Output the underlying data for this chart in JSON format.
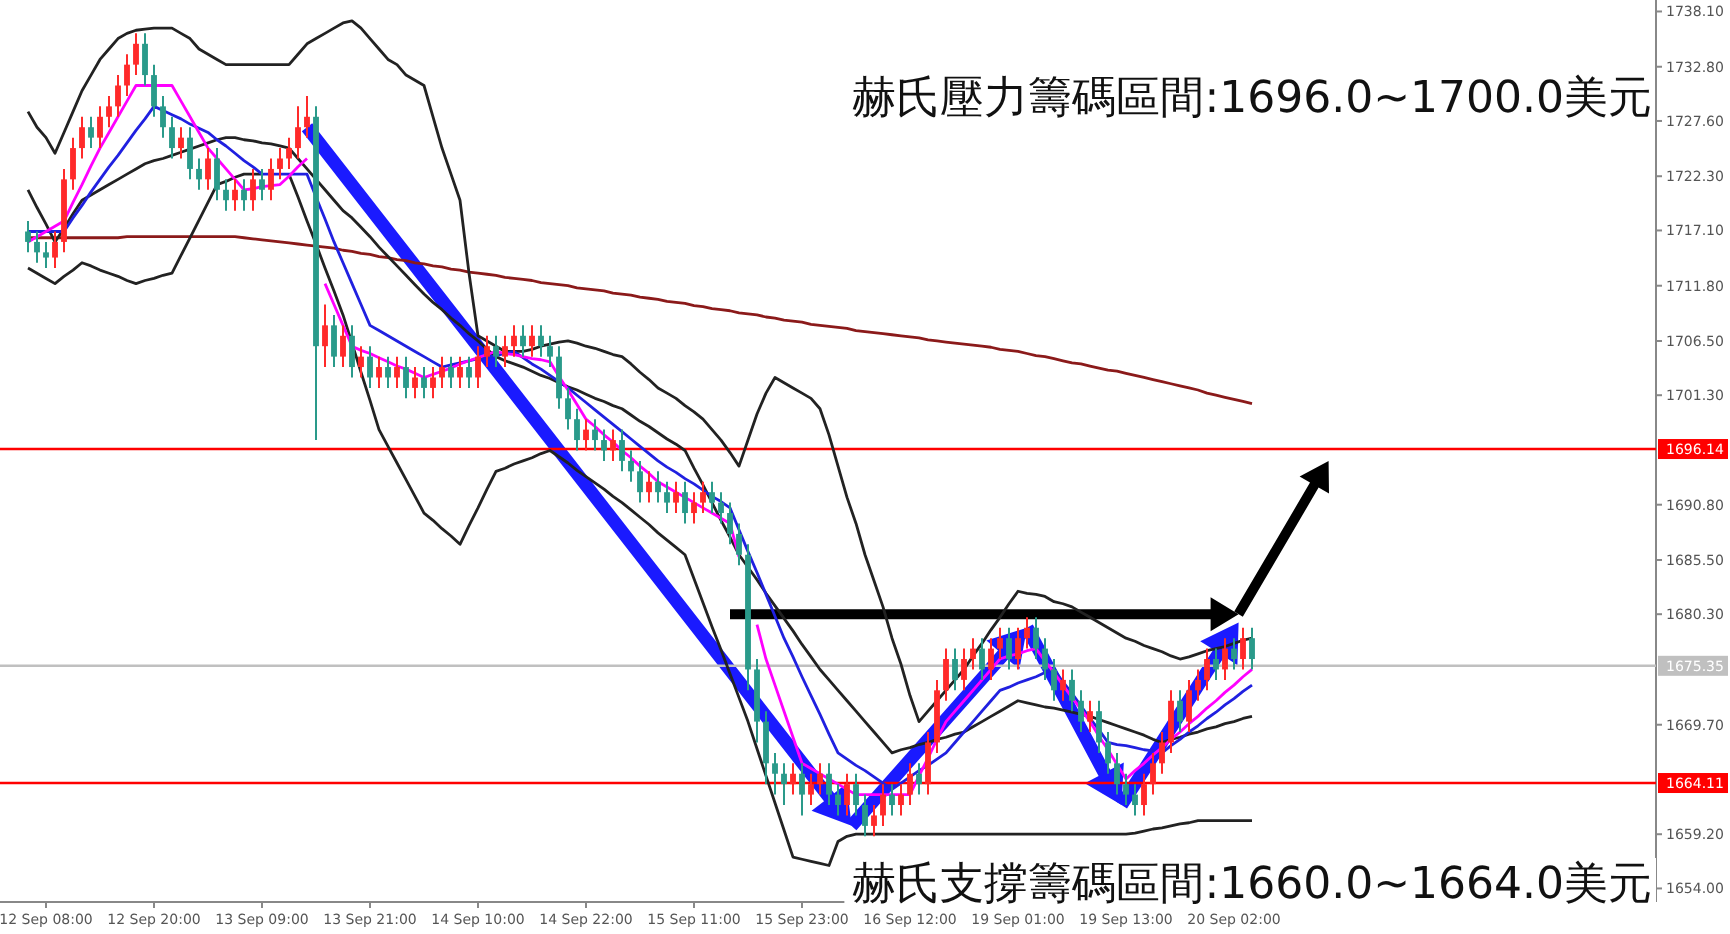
{
  "chart_data": {
    "type": "candlestick",
    "annotations": [
      "赫氏壓力籌碼區間:1696.0~1700.0美元",
      "赫氏支撐籌碼區間:1660.0~1664.0美元"
    ],
    "categories": [
      null,
      null,
      "12 Sep 08:00",
      null,
      null,
      null,
      null,
      null,
      null,
      null,
      null,
      null,
      null,
      null,
      "12 Sep 20:00",
      null,
      null,
      null,
      null,
      null,
      null,
      null,
      null,
      null,
      null,
      null,
      "13 Sep 09:00",
      null,
      null,
      null,
      null,
      null,
      null,
      null,
      null,
      null,
      null,
      null,
      "13 Sep 21:00",
      null,
      null,
      null,
      null,
      null,
      null,
      null,
      null,
      null,
      null,
      null,
      "14 Sep 10:00",
      null,
      null,
      null,
      null,
      null,
      null,
      null,
      null,
      null,
      null,
      null,
      "14 Sep 22:00",
      null,
      null,
      null,
      null,
      null,
      null,
      null,
      null,
      null,
      null,
      null,
      "15 Sep 11:00",
      null,
      null,
      null,
      null,
      null,
      null,
      null,
      null,
      null,
      null,
      null,
      "15 Sep 23:00",
      null,
      null,
      null,
      null,
      null,
      null,
      null,
      null,
      null,
      null,
      null,
      "16 Sep 12:00",
      null,
      null,
      null,
      null,
      null,
      null,
      null,
      null,
      null,
      null,
      null,
      "19 Sep 01:00",
      null,
      null,
      null,
      null,
      null,
      null,
      null,
      null,
      null,
      null,
      null,
      "19 Sep 13:00",
      null,
      null,
      null,
      null,
      null,
      null,
      null,
      null,
      null,
      null,
      null,
      "20 Sep 02:00",
      null,
      null
    ],
    "ylim": [
      1652.7,
      1739.2
    ],
    "yticks": [
      {
        "value": 1738.1,
        "label": "1738.10"
      },
      {
        "value": 1732.8,
        "label": "1732.80"
      },
      {
        "value": 1727.6,
        "label": "1727.60"
      },
      {
        "value": 1722.3,
        "label": "1722.30"
      },
      {
        "value": 1717.1,
        "label": "1717.10"
      },
      {
        "value": 1711.8,
        "label": "1711.80"
      },
      {
        "value": 1706.5,
        "label": "1706.50"
      },
      {
        "value": 1701.3,
        "label": "1701.30"
      },
      {
        "value": 1690.8,
        "label": "1690.80"
      },
      {
        "value": 1685.5,
        "label": "1685.50"
      },
      {
        "value": 1680.3,
        "label": "1680.30"
      },
      {
        "value": 1669.7,
        "label": "1669.70"
      },
      {
        "value": 1659.2,
        "label": "1659.20"
      },
      {
        "value": 1654,
        "label": "1654.00"
      }
    ],
    "ref_lines": [
      {
        "axis": "y",
        "value": 1696.14,
        "label": "1696.14",
        "color": "#ff0000"
      },
      {
        "axis": "y",
        "value": 1675.35,
        "label": "1675.35",
        "color": "#c0c0c0"
      },
      {
        "axis": "y",
        "value": 1664.11,
        "label": "1664.11",
        "color": "#ff0000"
      }
    ],
    "colors": [
      "#2a9a8a",
      "#2a9a8a",
      "#2a9a8a",
      "#ff2a2a",
      "#ff2a2a",
      "#ff2a2a",
      "#ff2a2a",
      "#2a9a8a",
      "#ff2a2a",
      "#ff2a2a",
      "#ff2a2a",
      "#ff2a2a",
      "#ff2a2a",
      "#2a9a8a",
      "#2a9a8a",
      "#2a9a8a",
      "#2a9a8a",
      "#ff2a2a",
      "#2a9a8a",
      "#2a9a8a",
      "#ff2a2a",
      "#2a9a8a",
      "#2a9a8a",
      "#ff2a2a",
      "#2a9a8a",
      "#ff2a2a",
      "#2a9a8a",
      "#ff2a2a",
      "#ff2a2a",
      "#ff2a2a",
      "#ff2a2a",
      "#ff2a2a",
      "#2a9a8a",
      "#ff2a2a",
      "#2a9a8a",
      "#ff2a2a",
      "#2a9a8a",
      "#ff2a2a",
      "#2a9a8a",
      "#ff2a2a",
      "#2a9a8a",
      "#ff2a2a",
      "#2a9a8a",
      "#ff2a2a",
      "#2a9a8a",
      "#ff2a2a",
      "#ff2a2a",
      "#2a9a8a",
      "#ff2a2a",
      "#2a9a8a",
      "#ff2a2a",
      "#ff2a2a",
      "#2a9a8a",
      "#ff2a2a",
      "#ff2a2a",
      "#2a9a8a",
      "#ff2a2a",
      "#2a9a8a",
      "#2a9a8a",
      "#2a9a8a",
      "#2a9a8a",
      "#2a9a8a",
      "#ff2a2a",
      "#2a9a8a",
      "#2a9a8a",
      "#ff2a2a",
      "#2a9a8a",
      "#2a9a8a",
      "#2a9a8a",
      "#ff2a2a",
      "#2a9a8a",
      "#2a9a8a",
      "#ff2a2a",
      "#2a9a8a",
      "#ff2a2a",
      "#ff2a2a",
      "#2a9a8a",
      "#2a9a8a",
      "#2a9a8a",
      "#2a9a8a",
      "#2a9a8a",
      "#2a9a8a",
      "#2a9a8a",
      "#2a9a8a",
      "#2a9a8a",
      "#ff2a2a",
      "#2a9a8a",
      "#ff2a2a",
      "#ff2a2a",
      "#2a9a8a",
      "#2a9a8a",
      "#ff2a2a",
      "#2a9a8a",
      "#2a9a8a",
      "#ff2a2a",
      "#ff2a2a",
      "#2a9a8a",
      "#ff2a2a",
      "#ff2a2a",
      "#2a9a8a",
      "#ff2a2a",
      "#ff2a2a",
      "#ff2a2a",
      "#2a9a8a",
      "#ff2a2a",
      "#ff2a2a",
      "#2a9a8a",
      "#ff2a2a",
      "#ff2a2a",
      "#2a9a8a",
      "#ff2a2a",
      "#ff2a2a",
      "#2a9a8a",
      "#2a9a8a",
      "#2a9a8a",
      "#ff2a2a",
      "#2a9a8a",
      "#2a9a8a",
      "#ff2a2a",
      "#2a9a8a",
      "#2a9a8a",
      "#2a9a8a",
      "#2a9a8a",
      "#2a9a8a",
      "#ff2a2a",
      "#ff2a2a",
      "#ff2a2a",
      "#ff2a2a",
      "#2a9a8a",
      "#ff2a2a",
      "#ff2a2a",
      "#ff2a2a",
      "#2a9a8a",
      "#ff2a2a",
      "#2a9a8a",
      "#ff2a2a",
      "#2a9a8a"
    ],
    "ohlc": [
      [
        1717,
        1718,
        1715,
        1716
      ],
      [
        1716,
        1717,
        1714,
        1715
      ],
      [
        1715,
        1716,
        1713.5,
        1714.5
      ],
      [
        1714.5,
        1717,
        1713.5,
        1716
      ],
      [
        1716,
        1723,
        1715,
        1722
      ],
      [
        1722,
        1726,
        1721,
        1725
      ],
      [
        1725,
        1728,
        1724,
        1727
      ],
      [
        1727,
        1728,
        1725,
        1726
      ],
      [
        1726,
        1729,
        1725,
        1728
      ],
      [
        1728,
        1730,
        1727,
        1729
      ],
      [
        1729,
        1732,
        1728,
        1731
      ],
      [
        1731,
        1734,
        1730,
        1733
      ],
      [
        1733,
        1736,
        1732,
        1735
      ],
      [
        1735,
        1736,
        1731,
        1732
      ],
      [
        1732,
        1733,
        1728,
        1729
      ],
      [
        1729,
        1730,
        1726,
        1727
      ],
      [
        1727,
        1728,
        1724,
        1725
      ],
      [
        1725,
        1727,
        1724,
        1726
      ],
      [
        1726,
        1727,
        1722,
        1723
      ],
      [
        1723,
        1724,
        1721,
        1722
      ],
      [
        1722,
        1725,
        1721,
        1724
      ],
      [
        1724,
        1725,
        1720,
        1721
      ],
      [
        1721,
        1722,
        1719,
        1720
      ],
      [
        1720,
        1722,
        1719,
        1721
      ],
      [
        1721,
        1722,
        1719,
        1720
      ],
      [
        1720,
        1723,
        1719,
        1722
      ],
      [
        1722,
        1723,
        1720,
        1721
      ],
      [
        1721,
        1724,
        1720,
        1723
      ],
      [
        1723,
        1725,
        1722,
        1724
      ],
      [
        1724,
        1726,
        1723,
        1725
      ],
      [
        1725,
        1729,
        1724,
        1727
      ],
      [
        1727,
        1730,
        1726,
        1728
      ],
      [
        1728,
        1729,
        1697,
        1706
      ],
      [
        1706,
        1710,
        1704,
        1708
      ],
      [
        1708,
        1709,
        1704,
        1705
      ],
      [
        1705,
        1708,
        1704,
        1707
      ],
      [
        1707,
        1708,
        1703,
        1704
      ],
      [
        1704,
        1706,
        1703,
        1705
      ],
      [
        1705,
        1706,
        1702,
        1703
      ],
      [
        1703,
        1705,
        1702,
        1704
      ],
      [
        1704,
        1705,
        1702,
        1703
      ],
      [
        1703,
        1705,
        1702,
        1704
      ],
      [
        1704,
        1705,
        1701,
        1702
      ],
      [
        1702,
        1704,
        1701,
        1703
      ],
      [
        1703,
        1704,
        1701,
        1702
      ],
      [
        1702,
        1704,
        1701,
        1703
      ],
      [
        1703,
        1705,
        1702,
        1704
      ],
      [
        1704,
        1705,
        1702,
        1703
      ],
      [
        1703,
        1705,
        1702,
        1704
      ],
      [
        1704,
        1705,
        1702,
        1703
      ],
      [
        1703,
        1706,
        1702,
        1705
      ],
      [
        1705,
        1707,
        1704,
        1706
      ],
      [
        1706,
        1707,
        1704,
        1705
      ],
      [
        1705,
        1707,
        1704,
        1706
      ],
      [
        1706,
        1708,
        1705,
        1707
      ],
      [
        1707,
        1708,
        1705,
        1706
      ],
      [
        1706,
        1708,
        1705,
        1707
      ],
      [
        1707,
        1708,
        1705,
        1706
      ],
      [
        1706,
        1707,
        1704,
        1705
      ],
      [
        1705,
        1706,
        1700,
        1701
      ],
      [
        1701,
        1702,
        1698,
        1699
      ],
      [
        1699,
        1700,
        1696,
        1697
      ],
      [
        1697,
        1699,
        1696,
        1698
      ],
      [
        1698,
        1699,
        1696,
        1697
      ],
      [
        1697,
        1698,
        1695,
        1696
      ],
      [
        1696,
        1698,
        1695,
        1697
      ],
      [
        1697,
        1698,
        1694,
        1695
      ],
      [
        1695,
        1696,
        1693,
        1694
      ],
      [
        1694,
        1695,
        1691,
        1692
      ],
      [
        1692,
        1694,
        1691,
        1693
      ],
      [
        1693,
        1694,
        1691,
        1692
      ],
      [
        1692,
        1693,
        1690,
        1691
      ],
      [
        1691,
        1693,
        1690,
        1692
      ],
      [
        1692,
        1693,
        1689,
        1690
      ],
      [
        1690,
        1692,
        1689,
        1691
      ],
      [
        1691,
        1693,
        1690,
        1692
      ],
      [
        1692,
        1693,
        1690,
        1691
      ],
      [
        1691,
        1692,
        1689,
        1690
      ],
      [
        1690,
        1691,
        1687,
        1688
      ],
      [
        1688,
        1689,
        1685,
        1686
      ],
      [
        1686,
        1687,
        1673,
        1675
      ],
      [
        1675,
        1676,
        1668,
        1670
      ],
      [
        1670,
        1671,
        1664,
        1666
      ],
      [
        1666,
        1667,
        1663,
        1665
      ],
      [
        1665,
        1666,
        1662,
        1664
      ],
      [
        1664,
        1666,
        1663,
        1665
      ],
      [
        1665,
        1666,
        1661,
        1663
      ],
      [
        1663,
        1665,
        1662,
        1664
      ],
      [
        1664,
        1666,
        1663,
        1665
      ],
      [
        1665,
        1666,
        1662,
        1663
      ],
      [
        1663,
        1664,
        1661,
        1662
      ],
      [
        1662,
        1665,
        1661,
        1664
      ],
      [
        1664,
        1665,
        1661,
        1662
      ],
      [
        1662,
        1663,
        1659,
        1660
      ],
      [
        1660,
        1662,
        1659,
        1661
      ],
      [
        1661,
        1664,
        1660,
        1663
      ],
      [
        1663,
        1664,
        1661,
        1662
      ],
      [
        1662,
        1664,
        1661,
        1663
      ],
      [
        1663,
        1666,
        1662,
        1665
      ],
      [
        1665,
        1666,
        1663,
        1664
      ],
      [
        1664,
        1669,
        1663,
        1668
      ],
      [
        1668,
        1674,
        1667,
        1673
      ],
      [
        1673,
        1677,
        1672,
        1676
      ],
      [
        1676,
        1677,
        1673,
        1674
      ],
      [
        1674,
        1677,
        1673,
        1676
      ],
      [
        1676,
        1678,
        1675,
        1677
      ],
      [
        1677,
        1678,
        1674,
        1675
      ],
      [
        1675,
        1678,
        1674,
        1677
      ],
      [
        1677,
        1679,
        1676,
        1678
      ],
      [
        1678,
        1679,
        1675,
        1676
      ],
      [
        1676,
        1679,
        1675,
        1678
      ],
      [
        1678,
        1680,
        1677,
        1679
      ],
      [
        1679,
        1680,
        1676,
        1677
      ],
      [
        1677,
        1678,
        1674,
        1675
      ],
      [
        1675,
        1676,
        1672,
        1673
      ],
      [
        1673,
        1675,
        1672,
        1674
      ],
      [
        1674,
        1675,
        1671,
        1672
      ],
      [
        1672,
        1673,
        1669,
        1670
      ],
      [
        1670,
        1672,
        1669,
        1671
      ],
      [
        1671,
        1672,
        1667,
        1668
      ],
      [
        1668,
        1669,
        1665,
        1666
      ],
      [
        1666,
        1667,
        1663,
        1664
      ],
      [
        1664,
        1665,
        1662,
        1663
      ],
      [
        1663,
        1664,
        1661,
        1662
      ],
      [
        1662,
        1665,
        1661,
        1664
      ],
      [
        1664,
        1667,
        1663,
        1666
      ],
      [
        1666,
        1669,
        1665,
        1668
      ],
      [
        1668,
        1673,
        1667,
        1672
      ],
      [
        1672,
        1673,
        1669,
        1670
      ],
      [
        1670,
        1674,
        1669,
        1673
      ],
      [
        1673,
        1675,
        1672,
        1674
      ],
      [
        1674,
        1677,
        1673,
        1676
      ],
      [
        1676,
        1677,
        1674,
        1675
      ],
      [
        1675,
        1678,
        1674,
        1677
      ],
      [
        1677,
        1678,
        1675,
        1676
      ],
      [
        1676,
        1679,
        1675,
        1678
      ],
      [
        1678,
        1679,
        1675,
        1676
      ]
    ],
    "series": [
      {
        "type": "line",
        "color": "#8b1a1a",
        "values": [
          1716.4,
          1716.4,
          1716.4,
          1716.4,
          1716.4,
          1716.4,
          1716.4,
          1716.4,
          1716.4,
          1716.4,
          1716.4,
          1716.5,
          1716.5,
          1716.5,
          1716.5,
          1716.5,
          1716.5,
          1716.5,
          1716.5,
          1716.5,
          1716.5,
          1716.5,
          1716.5,
          1716.5,
          1716.4,
          1716.3,
          1716.2,
          1716.1,
          1716,
          1715.9,
          1715.8,
          1715.7,
          1715.6,
          1715.5,
          1715.4,
          1715.2,
          1715.1,
          1714.9,
          1714.8,
          1714.6,
          1714.5,
          1714.3,
          1714.2,
          1714,
          1713.9,
          1713.7,
          1713.6,
          1713.4,
          1713.3,
          1713.1,
          1713,
          1712.9,
          1712.8,
          1712.6,
          1712.5,
          1712.4,
          1712.3,
          1712.1,
          1712,
          1711.9,
          1711.8,
          1711.6,
          1711.5,
          1711.4,
          1711.3,
          1711.1,
          1711,
          1710.9,
          1710.7,
          1710.6,
          1710.5,
          1710.3,
          1710.2,
          1710.1,
          1709.9,
          1709.8,
          1709.6,
          1709.5,
          1709.4,
          1709.2,
          1709.1,
          1709,
          1708.8,
          1708.7,
          1708.5,
          1708.4,
          1708.3,
          1708.1,
          1708,
          1707.9,
          1707.8,
          1707.7,
          1707.5,
          1707.4,
          1707.3,
          1707.2,
          1707.1,
          1707,
          1706.9,
          1706.8,
          1706.6,
          1706.5,
          1706.4,
          1706.3,
          1706.2,
          1706.1,
          1706,
          1705.9,
          1705.7,
          1705.6,
          1705.5,
          1705.3,
          1705.1,
          1705,
          1704.8,
          1704.6,
          1704.4,
          1704.3,
          1704.1,
          1703.9,
          1703.7,
          1703.6,
          1703.4,
          1703.2,
          1703,
          1702.8,
          1702.6,
          1702.4,
          1702.2,
          1702,
          1701.8,
          1701.5,
          1701.3,
          1701.1,
          1700.9,
          1700.7,
          1700.5
        ]
      },
      {
        "type": "line",
        "color": "#222222",
        "values": [
          1728.5,
          1727,
          1726,
          1724.5,
          1726.5,
          1728.5,
          1730.5,
          1732,
          1733.5,
          1734.5,
          1735.5,
          1736,
          1736.3,
          1736.4,
          1736.5,
          1736.5,
          1736.5,
          1736,
          1735.5,
          1734.5,
          1734,
          1733.5,
          1733,
          1733,
          1733,
          1733,
          1733,
          1733,
          1733,
          1733,
          1734,
          1735,
          1735.5,
          1736,
          1736.5,
          1737,
          1737.2,
          1736.5,
          1735.5,
          1734.5,
          1733.5,
          1733,
          1732,
          1731.5,
          1731,
          1728,
          1725,
          1722.5,
          1720,
          1713,
          1707,
          1706.5,
          1706,
          1705.5,
          1705.5,
          1705.5,
          1705.7,
          1706,
          1706.2,
          1706.4,
          1706.5,
          1706.3,
          1706,
          1705.8,
          1705.5,
          1705.2,
          1705,
          1704.3,
          1703.5,
          1702.8,
          1702,
          1701.5,
          1701,
          1700.3,
          1699.7,
          1699,
          1698,
          1697,
          1695.8,
          1694.5,
          1697,
          1699.5,
          1701.5,
          1703,
          1702.5,
          1702,
          1701.5,
          1701,
          1700,
          1697.5,
          1694.5,
          1691.5,
          1689,
          1686,
          1683.5,
          1681,
          1678,
          1675.5,
          1672.5,
          1670,
          1671,
          1672,
          1673,
          1674,
          1675,
          1676.3,
          1677.5,
          1678.8,
          1680,
          1681.3,
          1682.5,
          1682.3,
          1682.2,
          1682,
          1681.5,
          1681.3,
          1681,
          1680.5,
          1680,
          1679.5,
          1679,
          1678.5,
          1678,
          1677.7,
          1677.3,
          1677,
          1676.7,
          1676.3,
          1676,
          1676.2,
          1676.5,
          1676.8,
          1677,
          1677.2,
          1677.5,
          1677.8,
          1678
        ]
      },
      {
        "type": "line",
        "color": "#222222",
        "values": [
          1721,
          1719.3,
          1717.7,
          1716,
          1717.3,
          1718.7,
          1720,
          1720.5,
          1721,
          1721.5,
          1722,
          1722.5,
          1723,
          1723.5,
          1723.8,
          1724,
          1724.3,
          1724.6,
          1724.9,
          1725.2,
          1725.5,
          1725.8,
          1726,
          1726,
          1725.8,
          1725.7,
          1725.5,
          1725.4,
          1725.2,
          1725,
          1724,
          1723,
          1722,
          1721,
          1720,
          1719,
          1718.3,
          1717.4,
          1716.5,
          1715.5,
          1714.6,
          1713.7,
          1712.8,
          1711.9,
          1711,
          1710.2,
          1709.5,
          1708.7,
          1708,
          1707.2,
          1706.5,
          1705.7,
          1705,
          1704.6,
          1704.3,
          1704,
          1703.6,
          1703.2,
          1702.9,
          1702.5,
          1702.1,
          1701.8,
          1701.4,
          1701,
          1700.7,
          1700.3,
          1700,
          1699.4,
          1698.8,
          1698.3,
          1697.7,
          1697.1,
          1696.6,
          1696,
          1694.3,
          1692.7,
          1691,
          1689.3,
          1687.7,
          1686,
          1684.8,
          1683.6,
          1682.3,
          1681.1,
          1679.9,
          1678.7,
          1677.4,
          1676.2,
          1675,
          1674,
          1673,
          1672,
          1671,
          1670,
          1669,
          1668,
          1667,
          1667.3,
          1667.5,
          1667.8,
          1668,
          1668.3,
          1668.5,
          1668.8,
          1669,
          1669.5,
          1670,
          1670.5,
          1671,
          1671.5,
          1672,
          1671.8,
          1671.6,
          1671.4,
          1671.3,
          1671.1,
          1670.9,
          1670.7,
          1670.5,
          1670.2,
          1669.9,
          1669.6,
          1669.3,
          1669,
          1668.7,
          1668.3,
          1668,
          1668.3,
          1668.5,
          1668.8,
          1669,
          1669.3,
          1669.5,
          1669.8,
          1670,
          1670.3,
          1670.5
        ]
      },
      {
        "type": "line",
        "color": "#222222",
        "values": [
          1713.5,
          1713,
          1712.5,
          1712,
          1712.7,
          1713.3,
          1714,
          1713.7,
          1713.3,
          1713,
          1712.7,
          1712.3,
          1712,
          1712.3,
          1712.5,
          1712.8,
          1713,
          1714.7,
          1716.4,
          1718.1,
          1719.8,
          1721.5,
          1721.8,
          1722.2,
          1722.5,
          1722.5,
          1722.5,
          null,
          null,
          1722.5,
          1720.3,
          1718,
          1715.8,
          1713.5,
          1711.3,
          1709,
          1706.3,
          1703.5,
          1700.8,
          1698,
          1696.4,
          1694.8,
          1693.2,
          1691.6,
          1690,
          1689.3,
          1688.5,
          1687.8,
          1687,
          1688.8,
          1690.5,
          1692.3,
          1694,
          1694.3,
          1694.7,
          1695,
          1695.3,
          1695.7,
          1696,
          1695.4,
          1694.8,
          1694.1,
          1693.5,
          1692.9,
          1692.3,
          1691.6,
          1691,
          1690.3,
          1689.6,
          1688.9,
          1688.1,
          1687.4,
          1686.7,
          1686,
          1683.7,
          1681.4,
          1679.1,
          1676.9,
          1674.6,
          1672.3,
          1670,
          1667.4,
          1664.8,
          1662.2,
          1659.6,
          1657,
          1656.8,
          1656.6,
          1656.4,
          1656.2,
          1658.5,
          1659,
          1659.2,
          1659.2,
          1659.2,
          1659.2,
          1659.2,
          1659.2,
          1659.2,
          1659.2,
          1659.2,
          1659.2,
          1659.2,
          1659.2,
          1659.2,
          1659.2,
          1659.2,
          1659.2,
          1659.2,
          1659.2,
          1659.2,
          1659.2,
          1659.2,
          1659.2,
          1659.2,
          1659.2,
          1659.2,
          1659.2,
          1659.2,
          1659.2,
          1659.2,
          1659.2,
          1659.2,
          1659.3,
          1659.5,
          1659.7,
          1659.8,
          1660,
          1660.2,
          1660.3,
          1660.5,
          1660.5,
          1660.5,
          1660.5,
          1660.5,
          1660.5,
          1660.5
        ]
      },
      {
        "type": "line",
        "color": "#2020e0",
        "values": [
          1717,
          1717,
          1717,
          1717,
          1717,
          1718.3,
          1719.5,
          1720.8,
          1722,
          1723.2,
          1724.3,
          1725.5,
          1726.7,
          1727.8,
          1729,
          1728.6,
          1728.2,
          1727.8,
          1727.3,
          1726.9,
          1726.5,
          1725.8,
          1725.2,
          1724.5,
          1723.8,
          1723.2,
          1722.5,
          1722.5,
          1722.5,
          1722.5,
          1722.5,
          1722.5,
          1720.3,
          1718.2,
          1716,
          1714,
          1712,
          1710,
          1708,
          1707.5,
          1707,
          1706.5,
          1706,
          1705.5,
          1705,
          1704.5,
          1704,
          1704.2,
          1704.4,
          1704.6,
          1704.8,
          1704.9,
          1705.1,
          1705.3,
          1705.5,
          1704.9,
          1704.3,
          1703.8,
          1703.2,
          1702.6,
          1702,
          1701.3,
          1700.6,
          1699.9,
          1699.2,
          1698.5,
          1697.8,
          1697.1,
          1696.4,
          1695.7,
          1695,
          1694.4,
          1693.9,
          1693.3,
          1692.8,
          1692.2,
          1691.6,
          1691.1,
          1690.5,
          1688.4,
          1686.3,
          1684.3,
          1682.2,
          1680.1,
          1678,
          1676.2,
          1674.3,
          1672.5,
          1670.7,
          1668.8,
          1667,
          1666.4,
          1665.8,
          1665.3,
          1664.7,
          1664.1,
          1663.5,
          1664.1,
          1664.7,
          1665.3,
          1665.8,
          1666.4,
          1667,
          1668,
          1669,
          1670,
          1671,
          1672,
          1673,
          1673.3,
          1673.7,
          1674,
          1674.3,
          1674.7,
          1675,
          1673.8,
          1672.7,
          1671.5,
          1670.3,
          1669.2,
          1668,
          1667.8,
          1667.7,
          1667.5,
          1667.3,
          1667.2,
          1667,
          1667.7,
          1668.3,
          1669,
          1669.6,
          1670.3,
          1670.9,
          1671.6,
          1672.2,
          1672.9,
          1673.5
        ]
      },
      {
        "type": "line",
        "color": "#ff00ff",
        "values": [
          1716,
          1716.5,
          1717,
          1717.5,
          1718,
          1719.8,
          1721.5,
          1723.3,
          1725,
          1726.5,
          1728,
          1729.5,
          1731,
          1731,
          1731,
          1731,
          1731,
          1729.5,
          1728,
          1726.5,
          1725,
          1724,
          1723,
          1722,
          1721,
          1721.1,
          1721.3,
          1721.4,
          1721.5,
          1722.3,
          1723.2,
          1724,
          null,
          1712,
          1710,
          1708,
          1706,
          1705.6,
          1705.3,
          1704.9,
          1704.5,
          1704.1,
          1703.8,
          1703.4,
          1703,
          1703.3,
          1703.6,
          1703.9,
          1704.3,
          1704.6,
          1704.9,
          1705.2,
          1705.5,
          1705.3,
          1705.2,
          1705,
          1704.8,
          1704.7,
          1704.5,
          1703.1,
          1701.8,
          1700.4,
          1699,
          1698.3,
          1697.5,
          1696.8,
          1696,
          1695.3,
          1694.5,
          1693.8,
          1693,
          1692.5,
          1692,
          1691.5,
          1691,
          1690.5,
          1690,
          1689.5,
          1689,
          1685.8,
          null,
          1679.3,
          1676,
          1673.5,
          1671,
          1668.5,
          1666,
          1665.5,
          1665,
          1664.5,
          1664,
          1663.5,
          1663,
          1663,
          1663,
          1663,
          1663,
          1663,
          1663,
          1664.8,
          1666.5,
          1668.3,
          1670,
          1671,
          1672,
          1673,
          1674,
          1675,
          1676,
          1676.3,
          1676.5,
          1676.8,
          1677,
          1675.8,
          1674.7,
          1673.5,
          1672.3,
          1671.2,
          1670,
          1668.6,
          1667.3,
          1665.9,
          1664.5,
          1665.3,
          1666,
          1666.8,
          1667.5,
          1668.3,
          1669,
          1669.8,
          1670.5,
          1671.3,
          1672,
          1672.8,
          1673.5,
          1674.3,
          1675
        ]
      }
    ]
  }
}
